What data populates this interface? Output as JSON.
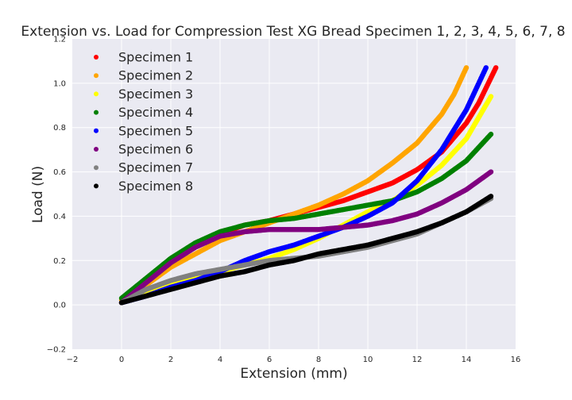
{
  "chart_data": {
    "type": "scatter",
    "title": "Extension vs. Load for Compression Test XG Bread Specimen 1, 2, 3, 4, 5, 6, 7, 8",
    "xlabel": "Extension (mm)",
    "ylabel": "Load (N)",
    "xlim": [
      -2,
      16
    ],
    "ylim": [
      -0.2,
      1.2
    ],
    "xticks": [
      "−2",
      "0",
      "2",
      "4",
      "6",
      "8",
      "10",
      "12",
      "14",
      "16"
    ],
    "yticks": [
      "−0.2",
      "0.0",
      "0.2",
      "0.4",
      "0.6",
      "0.8",
      "1.0",
      "1.2"
    ],
    "xtick_values": [
      -2,
      0,
      2,
      4,
      6,
      8,
      10,
      12,
      14,
      16
    ],
    "ytick_values": [
      -0.2,
      0,
      0.2,
      0.4,
      0.6,
      0.8,
      1.0,
      1.2
    ],
    "grid": true,
    "legend_position": "top-left",
    "series": [
      {
        "name": "Specimen 1",
        "color": "#ff0000",
        "x": [
          0,
          1,
          2,
          3,
          4,
          5,
          6,
          7,
          8,
          9,
          10,
          11,
          12,
          13,
          14,
          14.5,
          15.2
        ],
        "y": [
          0.01,
          0.1,
          0.19,
          0.27,
          0.32,
          0.36,
          0.38,
          0.41,
          0.44,
          0.47,
          0.51,
          0.55,
          0.61,
          0.69,
          0.82,
          0.91,
          1.07
        ]
      },
      {
        "name": "Specimen 2",
        "color": "#ffa500",
        "x": [
          0,
          1,
          2,
          3,
          4,
          5,
          6,
          7,
          8,
          9,
          10,
          11,
          12,
          13,
          13.5,
          14
        ],
        "y": [
          0.02,
          0.09,
          0.17,
          0.23,
          0.29,
          0.33,
          0.37,
          0.41,
          0.45,
          0.5,
          0.56,
          0.64,
          0.73,
          0.86,
          0.95,
          1.07
        ]
      },
      {
        "name": "Specimen 3",
        "color": "#ffff00",
        "x": [
          0,
          1,
          2,
          3,
          4,
          5,
          6,
          7,
          8,
          9,
          10,
          11,
          12,
          13,
          14,
          15
        ],
        "y": [
          0.01,
          0.05,
          0.09,
          0.12,
          0.15,
          0.18,
          0.21,
          0.25,
          0.3,
          0.36,
          0.42,
          0.47,
          0.54,
          0.63,
          0.75,
          0.94
        ]
      },
      {
        "name": "Specimen 4",
        "color": "#008000",
        "x": [
          0,
          1,
          2,
          3,
          4,
          5,
          6,
          7,
          8,
          9,
          10,
          11,
          12,
          13,
          14,
          15
        ],
        "y": [
          0.03,
          0.12,
          0.21,
          0.28,
          0.33,
          0.36,
          0.38,
          0.39,
          0.41,
          0.43,
          0.45,
          0.47,
          0.51,
          0.57,
          0.65,
          0.77
        ]
      },
      {
        "name": "Specimen 5",
        "color": "#0000ff",
        "x": [
          0,
          1,
          2,
          3,
          4,
          5,
          6,
          7,
          8,
          9,
          10,
          11,
          12,
          13,
          14,
          14.8
        ],
        "y": [
          0.01,
          0.04,
          0.08,
          0.11,
          0.15,
          0.2,
          0.24,
          0.27,
          0.31,
          0.35,
          0.4,
          0.46,
          0.56,
          0.7,
          0.88,
          1.07
        ]
      },
      {
        "name": "Specimen 6",
        "color": "#800080",
        "x": [
          0,
          1,
          2,
          3,
          4,
          5,
          6,
          7,
          8,
          9,
          10,
          11,
          12,
          13,
          14,
          15
        ],
        "y": [
          0.01,
          0.1,
          0.19,
          0.26,
          0.31,
          0.33,
          0.34,
          0.34,
          0.34,
          0.35,
          0.36,
          0.38,
          0.41,
          0.46,
          0.52,
          0.6
        ]
      },
      {
        "name": "Specimen 7",
        "color": "#808080",
        "x": [
          0,
          1,
          2,
          3,
          4,
          5,
          6,
          7,
          8,
          9,
          10,
          11,
          12,
          13,
          14,
          15
        ],
        "y": [
          0.01,
          0.07,
          0.11,
          0.14,
          0.16,
          0.18,
          0.2,
          0.21,
          0.22,
          0.24,
          0.26,
          0.29,
          0.32,
          0.37,
          0.42,
          0.48
        ]
      },
      {
        "name": "Specimen 8",
        "color": "#000000",
        "x": [
          0,
          1,
          2,
          3,
          4,
          5,
          6,
          7,
          8,
          9,
          10,
          11,
          12,
          13,
          14,
          15
        ],
        "y": [
          0.01,
          0.04,
          0.07,
          0.1,
          0.13,
          0.15,
          0.18,
          0.2,
          0.23,
          0.25,
          0.27,
          0.3,
          0.33,
          0.37,
          0.42,
          0.49
        ]
      }
    ]
  }
}
